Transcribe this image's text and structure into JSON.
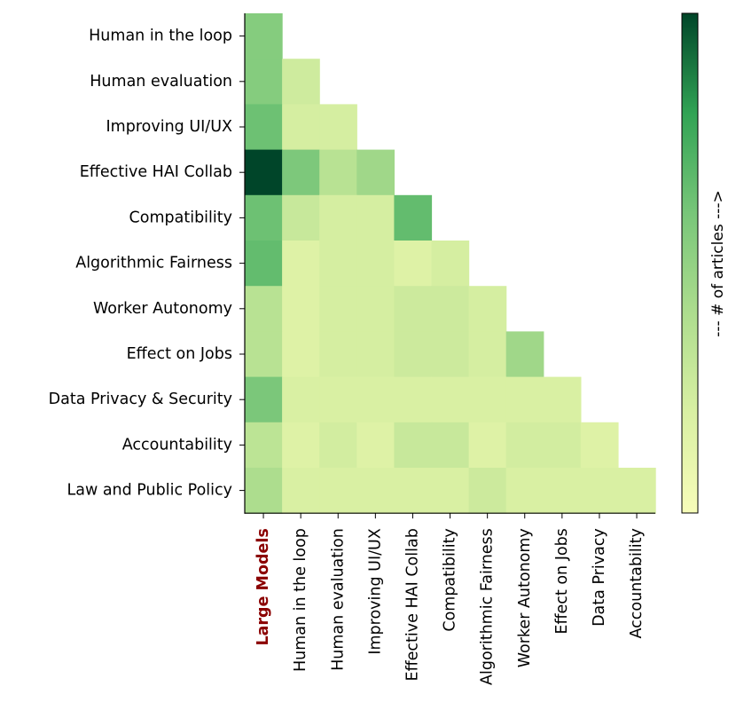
{
  "chart_data": {
    "type": "heatmap",
    "title": "",
    "row_labels": [
      "Human in the loop",
      "Human evaluation",
      "Improving UI/UX",
      "Effective HAI Collab",
      "Compatibility",
      "Algorithmic Fairness",
      "Worker Autonomy",
      "Effect on Jobs",
      "Data Privacy & Security",
      "Accountability",
      "Law and Public Policy"
    ],
    "col_labels": [
      "Large Models",
      "Human in the loop",
      "Human evaluation",
      "Improving UI/UX",
      "Effective HAI Collab",
      "Compatibility",
      "Algorithmic Fairness",
      "Worker Autonomy",
      "Effect on Jobs",
      "Data Privacy",
      "Accountability"
    ],
    "highlight_col_label_color": "#8b0000",
    "colorbar_label": "--- # of articles --->",
    "colormap": "Greens",
    "value_range": [
      0,
      1
    ],
    "values": [
      [
        0.55,
        null,
        null,
        null,
        null,
        null,
        null,
        null,
        null,
        null,
        null
      ],
      [
        0.55,
        0.25,
        null,
        null,
        null,
        null,
        null,
        null,
        null,
        null,
        null
      ],
      [
        0.63,
        0.22,
        0.22,
        null,
        null,
        null,
        null,
        null,
        null,
        null,
        null
      ],
      [
        1.0,
        0.58,
        0.35,
        0.45,
        null,
        null,
        null,
        null,
        null,
        null,
        null
      ],
      [
        0.63,
        0.28,
        0.22,
        0.22,
        0.66,
        null,
        null,
        null,
        null,
        null,
        null
      ],
      [
        0.66,
        0.17,
        0.22,
        0.22,
        0.17,
        0.22,
        null,
        null,
        null,
        null,
        null
      ],
      [
        0.35,
        0.17,
        0.22,
        0.22,
        0.26,
        0.26,
        0.22,
        null,
        null,
        null,
        null
      ],
      [
        0.35,
        0.17,
        0.22,
        0.22,
        0.26,
        0.26,
        0.22,
        0.45,
        null,
        null,
        null
      ],
      [
        0.59,
        0.2,
        0.2,
        0.2,
        0.2,
        0.2,
        0.2,
        0.2,
        0.2,
        null,
        null
      ],
      [
        0.33,
        0.17,
        0.23,
        0.17,
        0.28,
        0.28,
        0.17,
        0.23,
        0.23,
        0.17,
        null
      ],
      [
        0.4,
        0.2,
        0.2,
        0.2,
        0.2,
        0.2,
        0.26,
        0.2,
        0.2,
        0.2,
        0.2
      ]
    ]
  }
}
